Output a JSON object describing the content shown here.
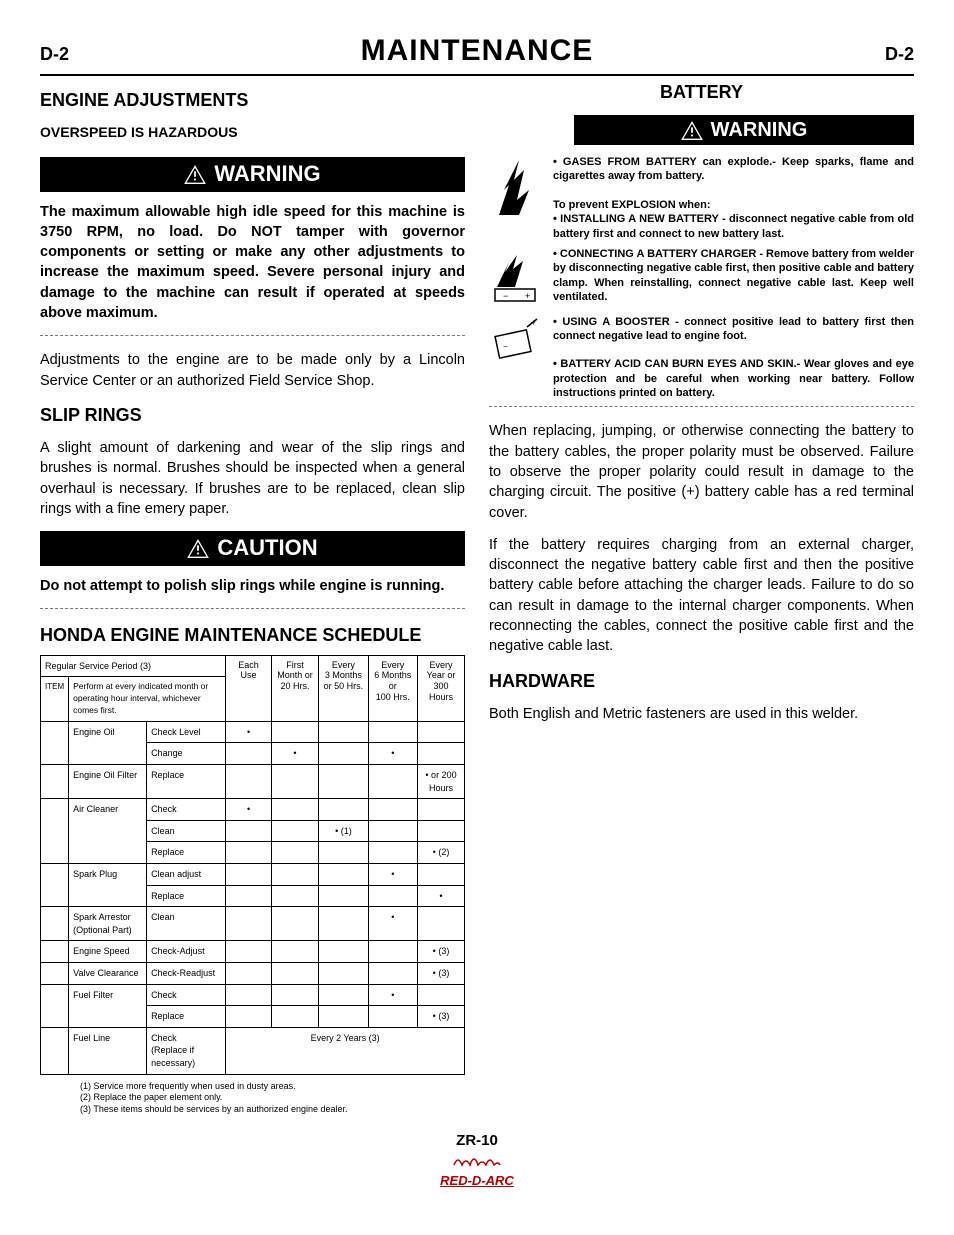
{
  "header": {
    "left": "D-2",
    "title": "MAINTENANCE",
    "right": "D-2"
  },
  "left": {
    "engine_adjustments": "ENGINE ADJUSTMENTS",
    "overspeed": "OVERSPEED IS HAZARDOUS",
    "warning_label": "WARNING",
    "warning_text": "The maximum allowable high idle speed for this machine is 3750 RPM, no load. Do NOT tamper with governor components or setting or make any other adjustments to increase the maximum speed. Severe personal injury and damage to the machine can result if operated at speeds above maximum.",
    "adjustments_note": "Adjustments to the engine are to be made only by a Lincoln Service Center or an authorized Field Service Shop.",
    "slip_rings": "SLIP RINGS",
    "slip_rings_text": "A slight amount of darkening and wear of the slip rings and brushes is normal.  Brushes should be inspected when a general overhaul is necessary. If brushes are to be replaced, clean slip rings with a fine emery paper.",
    "caution_label": "CAUTION",
    "caution_text": "Do not attempt to polish slip rings while engine is running.",
    "schedule_heading": "HONDA ENGINE MAINTENANCE SCHEDULE"
  },
  "right": {
    "battery": "BATTERY",
    "warning_label": "WARNING",
    "b1": "• GASES FROM BATTERY can explode.- Keep sparks, flame and cigarettes away from battery.",
    "b1b": "To prevent EXPLOSION when:",
    "b1c": "• INSTALLING A NEW BATTERY - disconnect negative cable from old battery first and connect to new battery last.",
    "b2": "• CONNECTING A BATTERY CHARGER - Remove battery from welder by disconnecting negative cable first, then positive cable and battery clamp. When reinstalling, connect negative cable last.  Keep well ventilated.",
    "b3": "• USING A BOOSTER - connect positive lead to battery first then connect negative lead to engine foot.",
    "b4": "• BATTERY ACID CAN BURN EYES AND SKIN.- Wear gloves and eye protection and be careful when working near battery. Follow instructions printed on battery.",
    "p1": "When replacing, jumping, or otherwise connecting the battery to the battery cables, the proper polarity must be observed. Failure to observe the proper polarity could result in damage to the charging circuit. The positive (+) battery cable has a red terminal cover.",
    "p2": "If the battery requires charging from an external charger, disconnect the negative battery cable first and then the positive battery cable before attaching the charger leads. Failure to do so can result in damage to the internal charger components. When reconnecting the cables, connect the positive cable first and the negative cable last.",
    "hardware": "HARDWARE",
    "hardware_text": "Both English and Metric fasteners are used in this welder."
  },
  "table": {
    "header_row": {
      "regular": "Regular Service Period (3)",
      "cols": [
        "Each\nUse",
        "First\nMonth  or\n20  Hrs.",
        "Every\n3 Months\nor 50 Hrs.",
        "Every\n6 Months  or\n100  Hrs.",
        "Every\nYear or\n300 Hours"
      ]
    },
    "item_note": "Perform at every indicated month or operating hour interval,  whichever  comes first.",
    "item_label": "ITEM",
    "rows": [
      {
        "name": "Engine Oil",
        "acts": [
          {
            "a": "Check  Level",
            "d": [
              "•",
              "",
              "",
              "",
              ""
            ]
          },
          {
            "a": "Change",
            "d": [
              "",
              "•",
              "",
              "•",
              ""
            ]
          }
        ]
      },
      {
        "name": "Engine Oil  Filter",
        "acts": [
          {
            "a": "Replace",
            "d": [
              "",
              "",
              "",
              "",
              "•  or 200 Hours"
            ]
          }
        ]
      },
      {
        "name": "Air  Cleaner",
        "acts": [
          {
            "a": "Check",
            "d": [
              "•",
              "",
              "",
              "",
              ""
            ]
          },
          {
            "a": "Clean",
            "d": [
              "",
              "",
              "• (1)",
              "",
              ""
            ]
          },
          {
            "a": "Replace",
            "d": [
              "",
              "",
              "",
              "",
              "• (2)"
            ]
          }
        ]
      },
      {
        "name": "Spark Plug",
        "acts": [
          {
            "a": "Clean adjust",
            "d": [
              "",
              "",
              "",
              "•",
              ""
            ]
          },
          {
            "a": "Replace",
            "d": [
              "",
              "",
              "",
              "",
              "•"
            ]
          }
        ]
      },
      {
        "name": "Spark Arrestor (Optional Part)",
        "acts": [
          {
            "a": "Clean",
            "d": [
              "",
              "",
              "",
              "•",
              ""
            ]
          }
        ]
      },
      {
        "name": "Engine Speed",
        "acts": [
          {
            "a": "Check-Adjust",
            "d": [
              "",
              "",
              "",
              "",
              "•  (3)"
            ]
          }
        ]
      },
      {
        "name": "Valve Clearance",
        "acts": [
          {
            "a": "Check-Readjust",
            "d": [
              "",
              "",
              "",
              "",
              "•  (3)"
            ]
          }
        ]
      },
      {
        "name": "Fuel Filter",
        "acts": [
          {
            "a": "Check",
            "d": [
              "",
              "",
              "",
              "•",
              ""
            ]
          },
          {
            "a": "Replace",
            "d": [
              "",
              "",
              "",
              "",
              "•  (3)"
            ]
          }
        ]
      },
      {
        "name": "Fuel Line",
        "acts": [
          {
            "a": "Check\n(Replace if  necessary)",
            "d": [
              "Every 2 Years (3)"
            ]
          }
        ]
      }
    ],
    "notes": [
      "(1)  Service  more  frequently   when  used in  dusty  areas.",
      "(2)  Replace  the  paper  element  only.",
      "(3)  These  items  should  be  services  by  an  authorized   engine  dealer."
    ]
  },
  "footer": {
    "model": "ZR-10",
    "logo": "RED-D-ARC"
  }
}
